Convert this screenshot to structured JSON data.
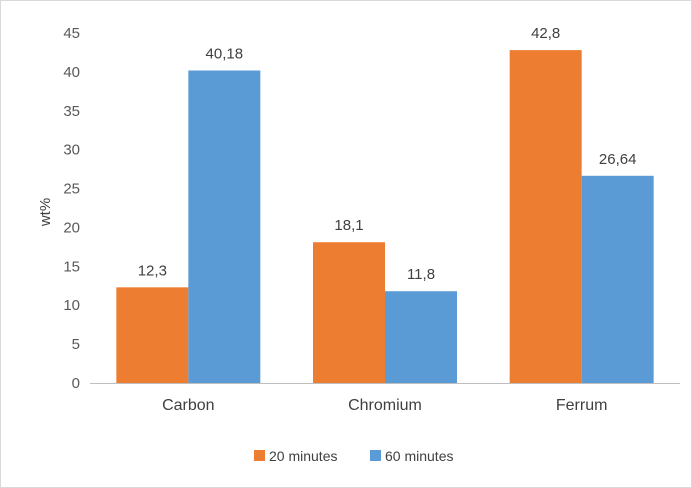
{
  "chart_data": {
    "type": "bar",
    "title": "",
    "xlabel": "",
    "ylabel": "wt%",
    "ylim": [
      0,
      45
    ],
    "yticks": [
      0,
      5,
      10,
      15,
      20,
      25,
      30,
      35,
      40,
      45
    ],
    "grid": false,
    "legend_position": "bottom",
    "categories": [
      "Carbon",
      "Chromium",
      "Ferrum"
    ],
    "series": [
      {
        "name": "20 minutes",
        "color": "#ed7d31",
        "values": [
          12.3,
          18.1,
          42.8
        ],
        "data_labels": [
          "12,3",
          "18,1",
          "42,8"
        ]
      },
      {
        "name": "60 minutes",
        "color": "#5b9bd5",
        "values": [
          40.18,
          11.8,
          26.64
        ],
        "data_labels": [
          "40,18",
          "11,8",
          "26,64"
        ]
      }
    ]
  }
}
